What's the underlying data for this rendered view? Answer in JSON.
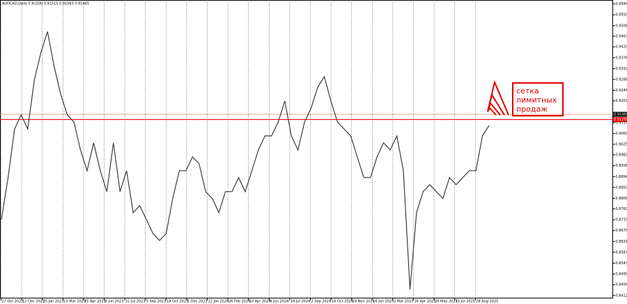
{
  "chart_data": {
    "type": "line",
    "title": "AUDCAD,Daily 0.91200 0.91515 0.91083 0.91465",
    "annotation": [
      "сетка",
      "лимитных",
      "продаж"
    ],
    "color": "#3a3a3a",
    "values": [
      0.872,
      0.8888,
      0.9087,
      0.9144,
      0.9087,
      0.9286,
      0.9397,
      0.9482,
      0.9341,
      0.9228,
      0.9144,
      0.9115,
      0.9002,
      0.8918,
      0.9031,
      0.8918,
      0.8833,
      0.9031,
      0.8833,
      0.8918,
      0.8748,
      0.8776,
      0.872,
      0.8663,
      0.8635,
      0.8663,
      0.8805,
      0.8918,
      0.8918,
      0.8974,
      0.8946,
      0.8833,
      0.8805,
      0.8748,
      0.8833,
      0.8833,
      0.889,
      0.8833,
      0.8918,
      0.9002,
      0.9059,
      0.9059,
      0.9115,
      0.92,
      0.9059,
      0.9002,
      0.9115,
      0.9172,
      0.9257,
      0.9299,
      0.92,
      0.9115,
      0.9087,
      0.9059,
      0.8974,
      0.889,
      0.889,
      0.8974,
      0.9031,
      0.9002,
      0.9059,
      0.8918,
      0.8437,
      0.8748,
      0.8833,
      0.8861,
      0.8833,
      0.8805,
      0.889,
      0.8861,
      0.889,
      0.8918,
      0.8918,
      0.9059,
      0.9101
    ],
    "ylim": [
      0.84,
      0.961
    ],
    "yticks": [
      {
        "value": 0.8412,
        "label": "0.84120"
      },
      {
        "value": 0.8456,
        "label": "0.84560"
      },
      {
        "value": 0.8499,
        "label": "0.84990"
      },
      {
        "value": 0.8543,
        "label": "0.85430"
      },
      {
        "value": 0.8587,
        "label": "0.85870"
      },
      {
        "value": 0.8631,
        "label": "0.86310"
      },
      {
        "value": 0.8675,
        "label": "0.86750"
      },
      {
        "value": 0.8719,
        "label": "0.87190"
      },
      {
        "value": 0.8763,
        "label": "0.87630"
      },
      {
        "value": 0.8806,
        "label": "0.88060"
      },
      {
        "value": 0.885,
        "label": "0.88500"
      },
      {
        "value": 0.8894,
        "label": "0.88940"
      },
      {
        "value": 0.8938,
        "label": "0.89380"
      },
      {
        "value": 0.8982,
        "label": "0.89820"
      },
      {
        "value": 0.9025,
        "label": "0.90250"
      },
      {
        "value": 0.9069,
        "label": "0.90690"
      },
      {
        "value": 0.9113,
        "label": "0.91130"
      },
      {
        "value": 0.9201,
        "label": "0.92010"
      },
      {
        "value": 0.9244,
        "label": "0.92440"
      },
      {
        "value": 0.9288,
        "label": "0.92880"
      },
      {
        "value": 0.9332,
        "label": "0.93320"
      },
      {
        "value": 0.9376,
        "label": "0.93760"
      },
      {
        "value": 0.942,
        "label": "0.94200"
      },
      {
        "value": 0.9463,
        "label": "0.94630"
      },
      {
        "value": 0.9506,
        "label": "0.95060"
      },
      {
        "value": 0.955,
        "label": "0.95500"
      },
      {
        "value": 0.9594,
        "label": "0.95940"
      }
    ],
    "levels": [
      {
        "value": 0.91465,
        "label": "0.91465",
        "color": "#e8a27c"
      },
      {
        "value": 0.9125,
        "label": "0.91250",
        "color": "#ff0000"
      }
    ],
    "xtick_labels": [
      "27 Oct 2022",
      "12 Dec 2022",
      "25 Jan 2023",
      "10 Mar 2023",
      "25 Apr 2023",
      "8 Jun 2023",
      "21 Jul 2023",
      "5 Sep 2023",
      "18 Oct 2023",
      "1 Dec 2023",
      "12 Jan 2024",
      "26 Feb 2024",
      "10 Apr 2024",
      "4 Jun 2024",
      "18 Jul 2024",
      "2 Sep 2024",
      "16 Oct 2024",
      "29 Nov 2024",
      "16 Jan 2025",
      "3 Mar 2025",
      "16 Apr 2025",
      "30 May 2025",
      "15 Jul 2025",
      "28 Aug 2025"
    ],
    "grid": true
  }
}
